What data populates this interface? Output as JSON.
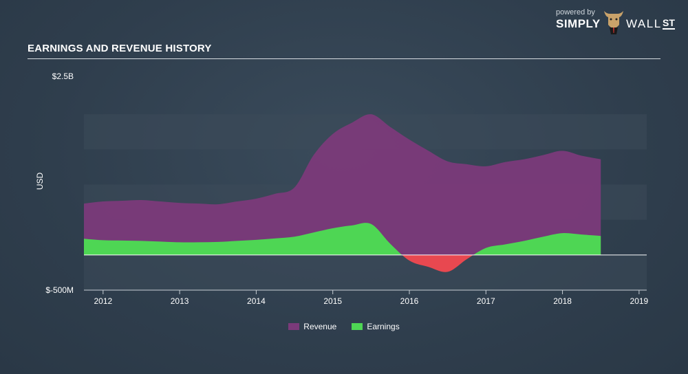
{
  "header": {
    "title": "EARNINGS AND REVENUE HISTORY"
  },
  "brand": {
    "powered_by": "powered by",
    "simply": "SIMPLY",
    "wall": "WALL",
    "st": "ST"
  },
  "colors": {
    "revenue": "#7b3a7a",
    "earnings": "#4ed654",
    "negative": "#e84850",
    "band": "#3c4b5a"
  },
  "chart_data": {
    "type": "area",
    "title": "EARNINGS AND REVENUE HISTORY",
    "ylabel": "USD",
    "ylim": [
      -500,
      2500
    ],
    "ytick_labels": [
      "$2.5B",
      "$-500M"
    ],
    "x_ticks": [
      "2012",
      "2013",
      "2014",
      "2015",
      "2016",
      "2017",
      "2018",
      "2019"
    ],
    "xlim": [
      2011.75,
      2019.1
    ],
    "legend": [
      "Revenue",
      "Earnings"
    ],
    "legend_position": "bottom-center",
    "series": [
      {
        "name": "Revenue",
        "x": [
          2011.75,
          2012.0,
          2012.25,
          2012.5,
          2012.75,
          2013.0,
          2013.25,
          2013.5,
          2013.75,
          2014.0,
          2014.25,
          2014.5,
          2014.75,
          2015.0,
          2015.25,
          2015.5,
          2015.75,
          2016.0,
          2016.25,
          2016.5,
          2016.75,
          2017.0,
          2017.25,
          2017.5,
          2017.75,
          2018.0,
          2018.25,
          2018.5
        ],
        "values": [
          730,
          760,
          770,
          780,
          760,
          740,
          730,
          720,
          760,
          800,
          870,
          960,
          1420,
          1720,
          1880,
          2000,
          1820,
          1640,
          1480,
          1330,
          1290,
          1260,
          1320,
          1360,
          1420,
          1480,
          1410,
          1360
        ]
      },
      {
        "name": "Earnings",
        "x": [
          2011.75,
          2012.0,
          2012.25,
          2012.5,
          2012.75,
          2013.0,
          2013.25,
          2013.5,
          2013.75,
          2014.0,
          2014.25,
          2014.5,
          2014.75,
          2015.0,
          2015.25,
          2015.5,
          2015.75,
          2016.0,
          2016.25,
          2016.5,
          2016.75,
          2017.0,
          2017.25,
          2017.5,
          2017.75,
          2018.0,
          2018.25,
          2018.5
        ],
        "values": [
          230,
          210,
          205,
          200,
          190,
          180,
          180,
          185,
          200,
          215,
          235,
          260,
          320,
          380,
          420,
          440,
          160,
          -80,
          -170,
          -240,
          -60,
          100,
          150,
          200,
          260,
          310,
          290,
          270
        ]
      }
    ]
  }
}
